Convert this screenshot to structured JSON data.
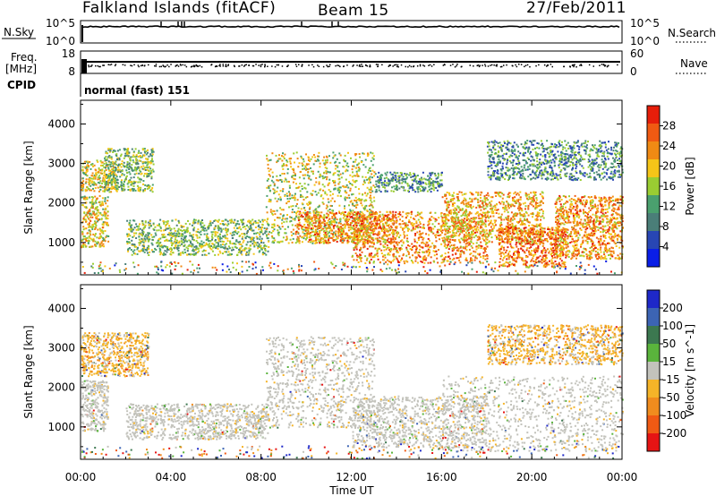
{
  "header": {
    "station": "Falkland Islands (fitACF)",
    "beam": "Beam 15",
    "date": "27/Feb/2011"
  },
  "mini_panels": {
    "nsky": {
      "label": "N.Sky",
      "ticks": [
        "10^5",
        "10^0"
      ],
      "right_label": "N.Search",
      "right_ticks": [
        "10^5",
        "10^0"
      ]
    },
    "freq": {
      "label_line1": "Freq.",
      "label_line2": "[MHz]",
      "ticks": [
        "18",
        "8"
      ],
      "right_label": "Nave",
      "right_ticks": [
        "60",
        "0"
      ]
    },
    "cpid": {
      "label": "CPID",
      "value": "normal (fast) 151"
    }
  },
  "colors": {
    "power_scale": [
      "#0a1ee6",
      "#2846b4",
      "#4a7e78",
      "#4aa06e",
      "#9acd32",
      "#f5c518",
      "#f08a14",
      "#f05a12",
      "#e61e0a"
    ],
    "velocity_scale": [
      "#1e28c8",
      "#3c64b4",
      "#3c7850",
      "#5ab43c",
      "#c3c3bc",
      "#f5b428",
      "#f08c1e",
      "#f05a14",
      "#e61414"
    ]
  },
  "chart_data": [
    {
      "type": "heatmap",
      "name": "power-panel",
      "xlabel": "",
      "ylabel": "Slant Range [km]",
      "x_ticks": [
        "00:00",
        "04:00",
        "08:00",
        "12:00",
        "16:00",
        "20:00",
        "00:00"
      ],
      "xlim_hours": [
        0,
        24
      ],
      "ylim_km": [
        180,
        4600
      ],
      "y_ticks": [
        1000,
        2000,
        3000,
        4000
      ],
      "colorbar": {
        "label": "Power [dB]",
        "ticks": [
          "28",
          "24",
          "20",
          "16",
          "12",
          "8",
          "4"
        ],
        "range": [
          0,
          32
        ]
      },
      "echo_regions": [
        {
          "x": [
            0.0,
            1.2
          ],
          "y": [
            900,
            2200
          ],
          "value": 20
        },
        {
          "x": [
            0.0,
            1.5
          ],
          "y": [
            2300,
            3100
          ],
          "value": 18
        },
        {
          "x": [
            1.0,
            3.2
          ],
          "y": [
            2300,
            3400
          ],
          "value": 14
        },
        {
          "x": [
            2.0,
            8.3
          ],
          "y": [
            700,
            1600
          ],
          "value": 14
        },
        {
          "x": [
            8.2,
            13.0
          ],
          "y": [
            1000,
            3300
          ],
          "value": 18
        },
        {
          "x": [
            9.5,
            14.0
          ],
          "y": [
            1000,
            1800
          ],
          "value": 24
        },
        {
          "x": [
            12.0,
            18.0
          ],
          "y": [
            500,
            1800
          ],
          "value": 24
        },
        {
          "x": [
            16.0,
            20.5
          ],
          "y": [
            1000,
            2300
          ],
          "value": 22
        },
        {
          "x": [
            18.5,
            21.5
          ],
          "y": [
            400,
            1400
          ],
          "value": 26
        },
        {
          "x": [
            21.0,
            24.0
          ],
          "y": [
            600,
            2200
          ],
          "value": 24
        },
        {
          "x": [
            18.0,
            24.0
          ],
          "y": [
            2600,
            3600
          ],
          "value": 10
        },
        {
          "x": [
            13.0,
            16.0
          ],
          "y": [
            2300,
            2800
          ],
          "value": 10
        }
      ]
    },
    {
      "type": "heatmap",
      "name": "velocity-panel",
      "xlabel": "Time UT",
      "ylabel": "Slant Range [km]",
      "x_ticks": [
        "00:00",
        "04:00",
        "08:00",
        "12:00",
        "16:00",
        "20:00",
        "00:00"
      ],
      "xlim_hours": [
        0,
        24
      ],
      "ylim_km": [
        180,
        4600
      ],
      "y_ticks": [
        1000,
        2000,
        3000,
        4000
      ],
      "colorbar": {
        "label": "Velocity [m s^-1]",
        "ticks": [
          "200",
          "100",
          "50",
          "15",
          "-15",
          "-50",
          "-100",
          "-200"
        ]
      },
      "echo_regions": [
        {
          "x": [
            0.0,
            1.2
          ],
          "y": [
            900,
            2200
          ],
          "value": 0
        },
        {
          "x": [
            0.0,
            3.0
          ],
          "y": [
            2300,
            3400
          ],
          "value": -30
        },
        {
          "x": [
            2.0,
            8.3
          ],
          "y": [
            700,
            1600
          ],
          "value": 0
        },
        {
          "x": [
            8.2,
            13.0
          ],
          "y": [
            1000,
            3300
          ],
          "value": 0
        },
        {
          "x": [
            12.0,
            18.0
          ],
          "y": [
            500,
            1800
          ],
          "value": 0
        },
        {
          "x": [
            16.0,
            24.0
          ],
          "y": [
            400,
            2300
          ],
          "value": 0
        },
        {
          "x": [
            18.0,
            24.0
          ],
          "y": [
            2600,
            3600
          ],
          "value": -40
        }
      ]
    }
  ]
}
